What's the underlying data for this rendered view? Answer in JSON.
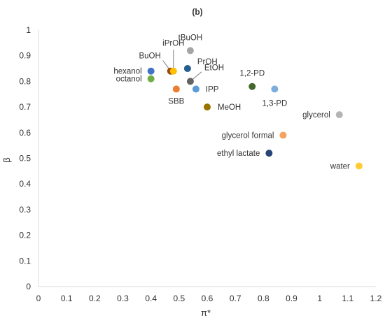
{
  "panel_label": "(b)",
  "chart_data": {
    "type": "scatter",
    "title": "",
    "xlabel": "π*",
    "ylabel": "β",
    "xlim": [
      0,
      1.2
    ],
    "ylim": [
      0,
      1
    ],
    "xticks": [
      0,
      0.1,
      0.2,
      0.3,
      0.4,
      0.5,
      0.6,
      0.7,
      0.8,
      0.9,
      1,
      1.1,
      1.2
    ],
    "yticks": [
      0,
      0.1,
      0.2,
      0.3,
      0.4,
      0.5,
      0.6,
      0.7,
      0.8,
      0.9,
      1
    ],
    "grid": false,
    "legend": "none",
    "points": [
      {
        "label": "hexanol",
        "x": 0.4,
        "y": 0.84,
        "color": "#4472c4"
      },
      {
        "label": "octanol",
        "x": 0.4,
        "y": 0.81,
        "color": "#70ad47"
      },
      {
        "label": "BuOH",
        "x": 0.47,
        "y": 0.84,
        "color": "#9e480e"
      },
      {
        "label": "iPrOH",
        "x": 0.48,
        "y": 0.84,
        "color": "#ffc000"
      },
      {
        "label": "tBuOH",
        "x": 0.54,
        "y": 0.92,
        "color": "#a5a5a5"
      },
      {
        "label": "PrOH",
        "x": 0.53,
        "y": 0.85,
        "color": "#255e91"
      },
      {
        "label": "EtOH",
        "x": 0.54,
        "y": 0.8,
        "color": "#636363"
      },
      {
        "label": "SBB",
        "x": 0.49,
        "y": 0.77,
        "color": "#ed7d31"
      },
      {
        "label": "IPP",
        "x": 0.56,
        "y": 0.77,
        "color": "#5b9bd5"
      },
      {
        "label": "MeOH",
        "x": 0.6,
        "y": 0.7,
        "color": "#997300"
      },
      {
        "label": "1,2-PD",
        "x": 0.76,
        "y": 0.78,
        "color": "#43682b"
      },
      {
        "label": "1,3-PD",
        "x": 0.84,
        "y": 0.77,
        "color": "#7caedb"
      },
      {
        "label": "glycerol",
        "x": 1.07,
        "y": 0.67,
        "color": "#b4b4b4"
      },
      {
        "label": "glycerol formal",
        "x": 0.87,
        "y": 0.59,
        "color": "#f4a460"
      },
      {
        "label": "ethyl lactate",
        "x": 0.82,
        "y": 0.52,
        "color": "#264478"
      },
      {
        "label": "water",
        "x": 1.14,
        "y": 0.47,
        "color": "#ffcc33"
      }
    ]
  }
}
